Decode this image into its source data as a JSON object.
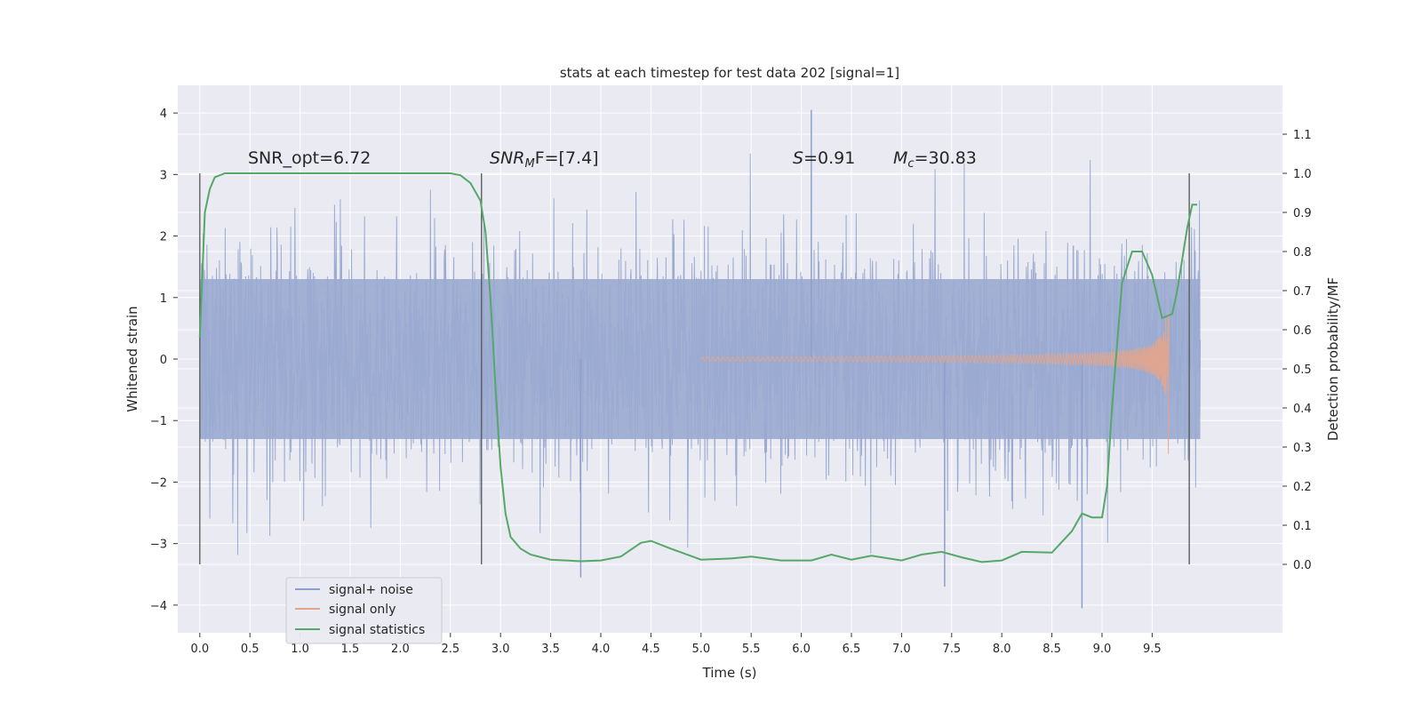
{
  "chart_data": {
    "type": "line",
    "title": "stats at each timestep for test data 202 [signal=1]",
    "xlabel": "Time (s)",
    "ylabel": "Whitened strain",
    "y2label": "Detection probability/MF",
    "xlim": [
      -0.22,
      10.8
    ],
    "ylim": [
      -4.45,
      4.45
    ],
    "y2lim": [
      -0.175,
      1.225
    ],
    "x_ticks": [
      0.0,
      0.5,
      1.0,
      1.5,
      2.0,
      2.5,
      3.0,
      3.5,
      4.0,
      4.5,
      5.0,
      5.5,
      6.0,
      6.5,
      7.0,
      7.5,
      8.0,
      8.5,
      9.0,
      9.5
    ],
    "x_tick_labels": [
      "0.0",
      "0.5",
      "1.0",
      "1.5",
      "2.0",
      "2.5",
      "3.0",
      "3.5",
      "4.0",
      "4.5",
      "5.0",
      "5.5",
      "6.0",
      "6.5",
      "7.0",
      "7.5",
      "8.0",
      "8.5",
      "9.0",
      "9.5"
    ],
    "y_ticks": [
      4,
      3,
      2,
      1,
      0,
      -1,
      -2,
      -3,
      -4
    ],
    "y_tick_labels": [
      "4",
      "3",
      "2",
      "1",
      "0",
      "−1",
      "−2",
      "−3",
      "−4"
    ],
    "y2_ticks": [
      1.1,
      1.0,
      0.9,
      0.8,
      0.7,
      0.6,
      0.5,
      0.4,
      0.3,
      0.2,
      0.1,
      0.0
    ],
    "y2_tick_labels": [
      "1.1",
      "1.0",
      "0.9",
      "0.8",
      "0.7",
      "0.6",
      "0.5",
      "0.4",
      "0.3",
      "0.2",
      "0.1",
      "0.0"
    ],
    "grid": true,
    "legend_position": "lower-left",
    "annotations": {
      "snr_opt": "SNR_opt=6.72",
      "snr_mf_main": "SNR",
      "snr_mf_sub": "M",
      "snr_mf_rest": "F=[7.4]",
      "s_var": "S",
      "s_val": "=0.91",
      "mc_var": "M",
      "mc_sub": "c",
      "mc_val": "=30.83"
    },
    "vertical_lines_x": [
      0.0,
      2.81,
      9.87
    ],
    "noise_envelope": {
      "x_range": [
        0.0,
        9.98
      ],
      "dense_amplitude": 1.3,
      "typical_peak": 2.4,
      "max_peak": 4.05,
      "min_trough": -4.05
    },
    "series": [
      {
        "name": "signal+ noise",
        "color": "#8da0cb",
        "axis": "left",
        "note_points": [
          [
            6.1,
            4.05
          ],
          [
            8.8,
            -4.05
          ],
          [
            7.43,
            -3.7
          ],
          [
            3.8,
            -3.55
          ]
        ]
      },
      {
        "name": "signal only",
        "color": "#e5a58a",
        "axis": "left",
        "chirp": {
          "start": 5.0,
          "merger": 9.67,
          "peak_amplitude": 1.7
        }
      },
      {
        "name": "signal statistics",
        "color": "#55a868",
        "axis": "right",
        "x": [
          0.0,
          0.05,
          0.1,
          0.15,
          0.25,
          0.5,
          1.0,
          1.5,
          2.0,
          2.5,
          2.6,
          2.7,
          2.8,
          2.85,
          2.9,
          2.95,
          3.0,
          3.05,
          3.1,
          3.2,
          3.3,
          3.5,
          3.8,
          4.0,
          4.2,
          4.4,
          4.5,
          4.7,
          5.0,
          5.3,
          5.5,
          5.8,
          6.1,
          6.3,
          6.5,
          6.7,
          7.0,
          7.2,
          7.4,
          7.6,
          7.8,
          8.0,
          8.2,
          8.5,
          8.7,
          8.8,
          8.9,
          9.0,
          9.05,
          9.1,
          9.2,
          9.3,
          9.4,
          9.5,
          9.6,
          9.7,
          9.75,
          9.8,
          9.85,
          9.9,
          9.95
        ],
        "y": [
          0.58,
          0.9,
          0.96,
          0.99,
          1.0,
          1.0,
          1.0,
          1.0,
          1.0,
          1.0,
          0.995,
          0.975,
          0.93,
          0.85,
          0.68,
          0.45,
          0.25,
          0.13,
          0.07,
          0.04,
          0.025,
          0.012,
          0.008,
          0.01,
          0.02,
          0.055,
          0.06,
          0.04,
          0.012,
          0.015,
          0.02,
          0.01,
          0.01,
          0.025,
          0.012,
          0.022,
          0.01,
          0.025,
          0.032,
          0.018,
          0.006,
          0.01,
          0.032,
          0.03,
          0.085,
          0.13,
          0.12,
          0.12,
          0.2,
          0.4,
          0.72,
          0.8,
          0.8,
          0.74,
          0.63,
          0.64,
          0.7,
          0.78,
          0.86,
          0.92,
          0.92
        ]
      }
    ]
  }
}
